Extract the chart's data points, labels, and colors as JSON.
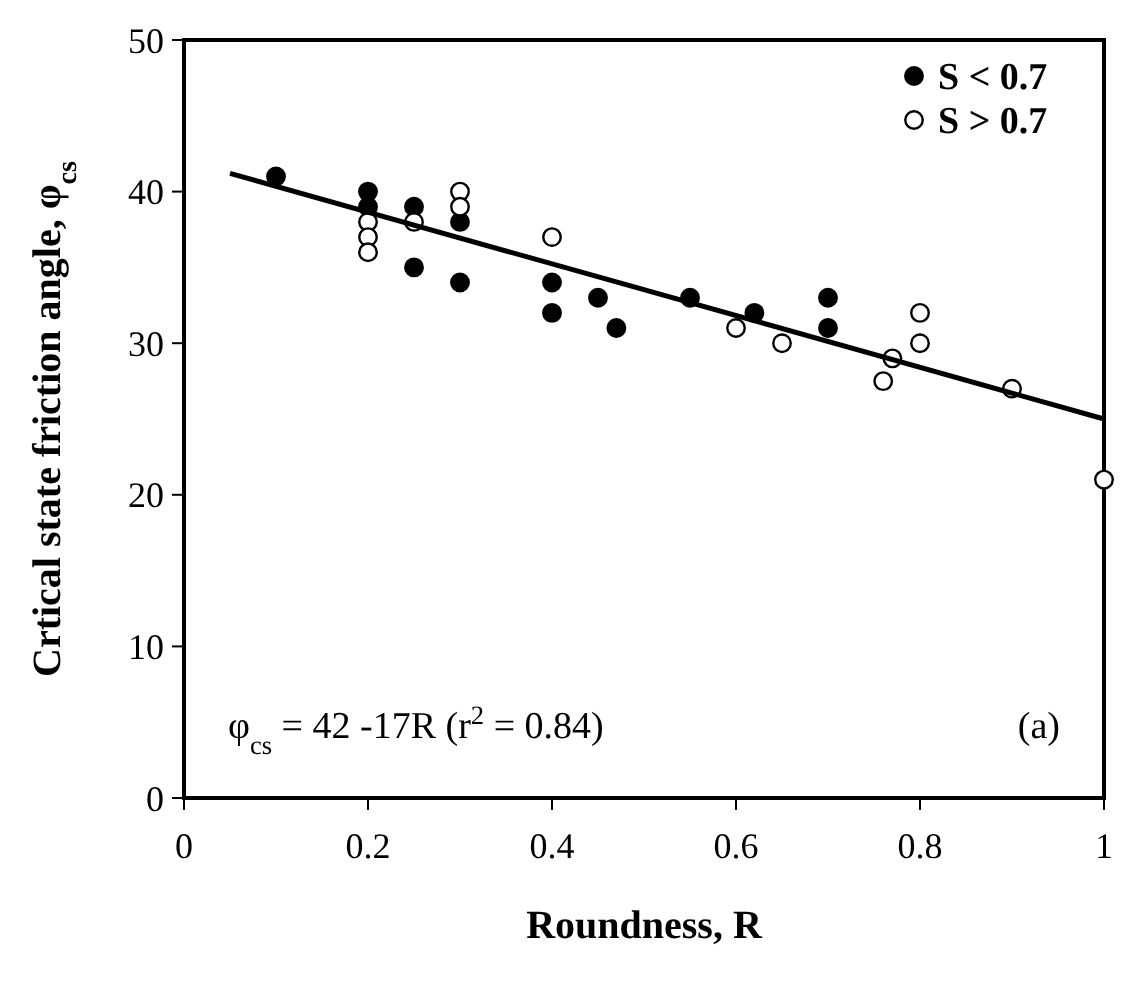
{
  "chart_data": {
    "type": "scatter",
    "xlabel": "Roundness, R",
    "ylabel": "Crtical state friction angle, φ$_{cs}$",
    "xlim": [
      0,
      1
    ],
    "ylim": [
      0,
      50
    ],
    "xticks": [
      0,
      0.2,
      0.4,
      0.6,
      0.8,
      1
    ],
    "yticks": [
      0,
      10,
      20,
      30,
      40,
      50
    ],
    "grid": false,
    "legend": "top right",
    "marker": "circle",
    "series": [
      {
        "name": "S < 0.7",
        "color": "#000000",
        "x": [
          0.1,
          0.2,
          0.2,
          0.25,
          0.25,
          0.3,
          0.3,
          0.4,
          0.4,
          0.45,
          0.47,
          0.55,
          0.62,
          0.7,
          0.7
        ],
        "values": [
          41,
          40,
          39,
          39,
          35,
          38,
          34,
          34,
          32,
          33,
          31,
          33,
          32,
          33,
          31
        ]
      },
      {
        "name": "S > 0.7",
        "color": "#ffffff",
        "x": [
          0.2,
          0.2,
          0.2,
          0.25,
          0.3,
          0.3,
          0.4,
          0.6,
          0.65,
          0.76,
          0.77,
          0.8,
          0.8,
          0.9,
          1
        ],
        "values": [
          38,
          37,
          36,
          38,
          40,
          39,
          37,
          31,
          30,
          27.5,
          29,
          32,
          30,
          27,
          21
        ]
      },
      {
        "type": "line",
        "marker": "none",
        "color": "#000000",
        "x": [
          0.05,
          1
        ],
        "values": [
          41.2,
          25
        ]
      }
    ],
    "annotations": [
      "φ$_{cs}$ = 42 -17R  (r$^{2}$ = 0.84)",
      "(a)"
    ]
  }
}
